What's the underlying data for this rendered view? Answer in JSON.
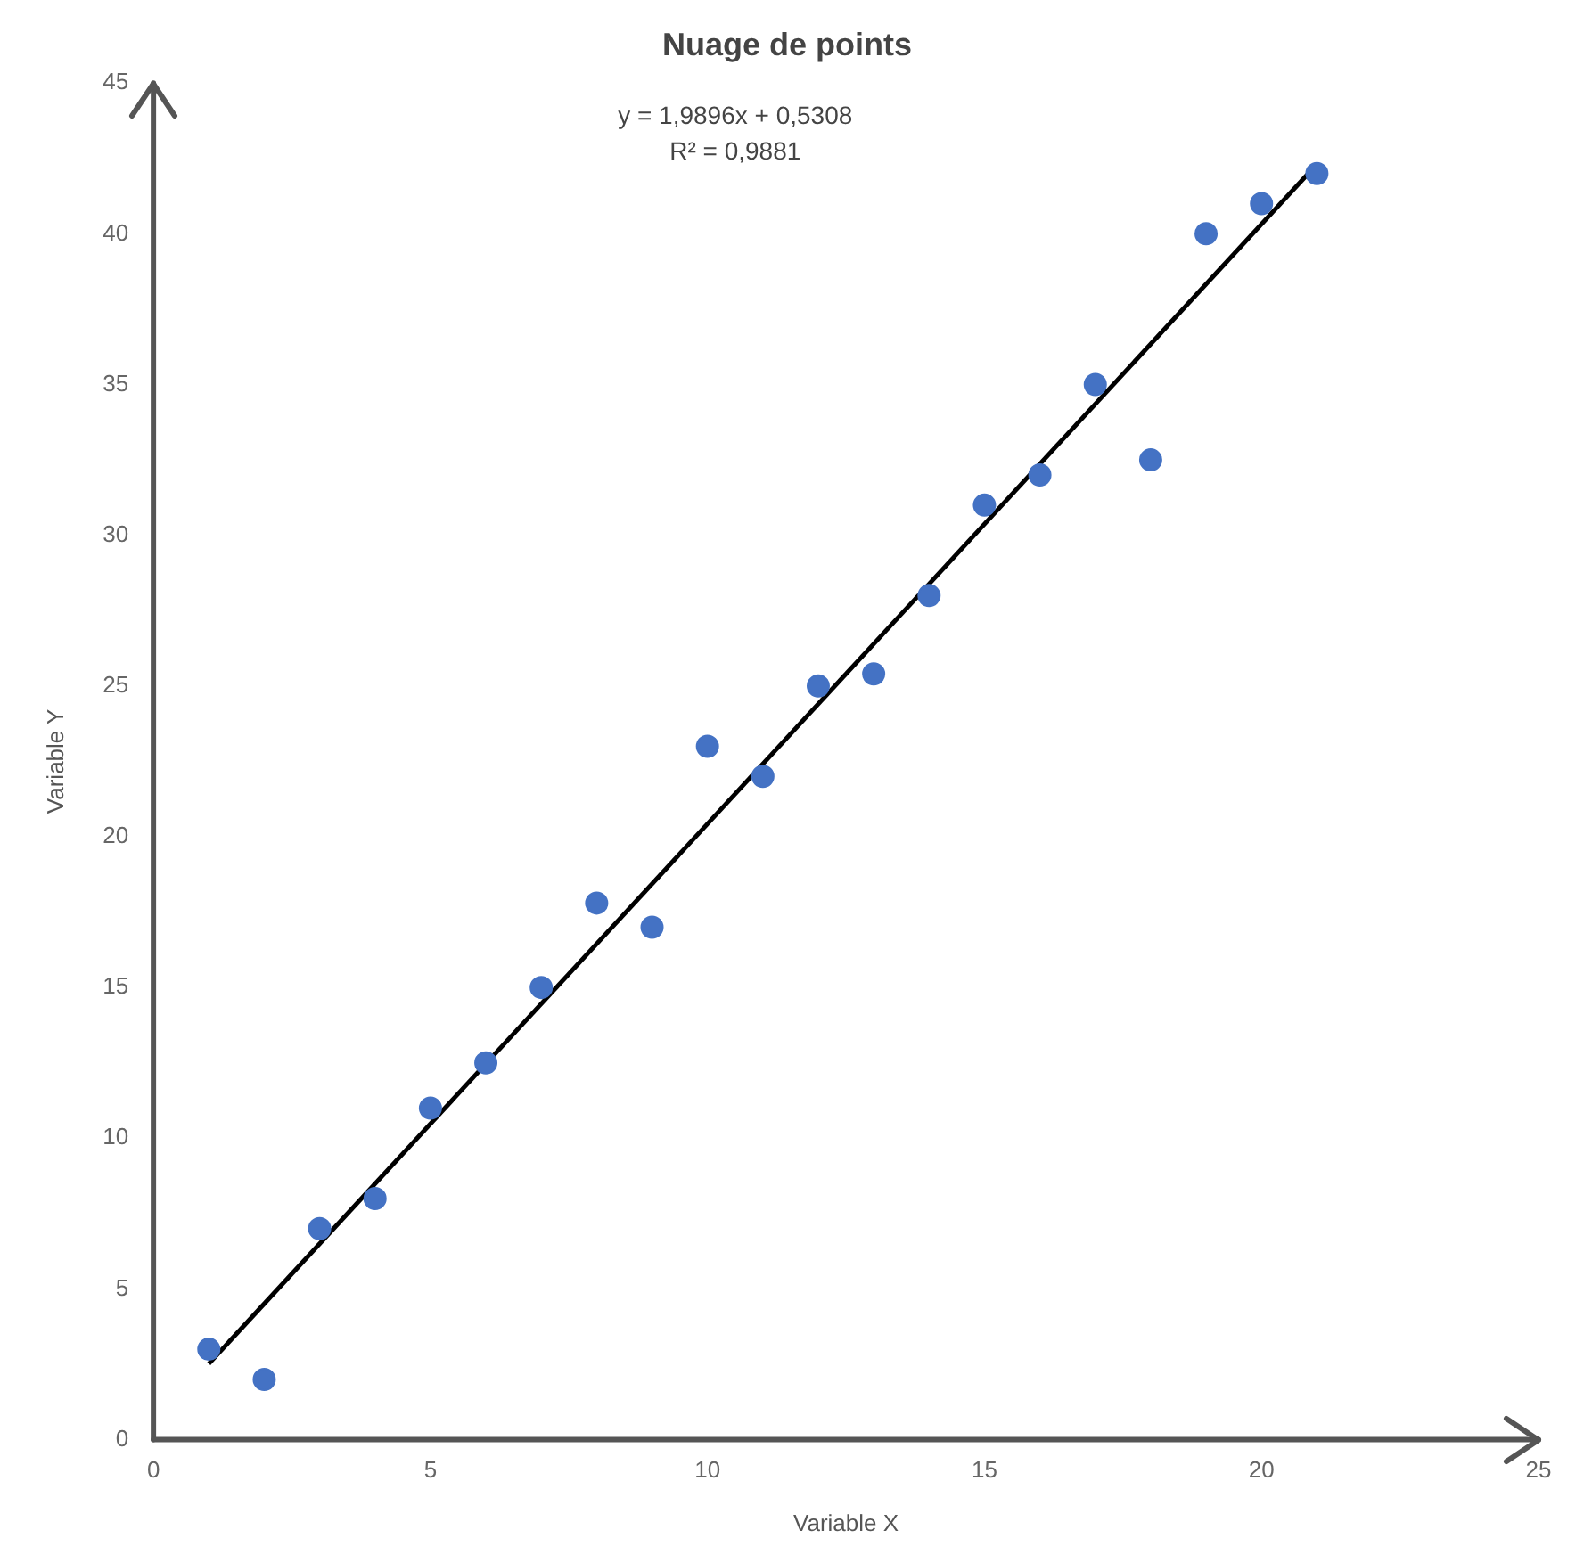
{
  "chart_data": {
    "type": "scatter",
    "title": "Nuage de points",
    "xlabel": "Variable X",
    "ylabel": "Variable Y",
    "annotations": [
      "y = 1,9896x + 0,5308",
      "R² = 0,9881"
    ],
    "xlim": [
      0,
      25
    ],
    "xticks": [
      0,
      5,
      10,
      15,
      20,
      25
    ],
    "ylim": [
      0,
      45
    ],
    "yticks": [
      0,
      5,
      10,
      15,
      20,
      25,
      30,
      35,
      40,
      45
    ],
    "grid": false,
    "marker": "circle",
    "series": [
      {
        "color": "#4472c4",
        "x": [
          1,
          2,
          3,
          4,
          5,
          6,
          7,
          8,
          9,
          10,
          11,
          12,
          13,
          14,
          15,
          16,
          17,
          18,
          19,
          20,
          21
        ],
        "values": [
          3,
          2,
          7,
          8,
          11,
          12.5,
          15,
          17.8,
          17,
          23,
          22,
          25,
          25.4,
          28,
          31,
          32,
          35,
          32.5,
          40,
          41,
          42
        ]
      },
      {
        "type": "line",
        "marker": "none",
        "color": "#000000",
        "x": [
          1,
          21
        ],
        "values": [
          2.52,
          42.31
        ]
      }
    ]
  }
}
